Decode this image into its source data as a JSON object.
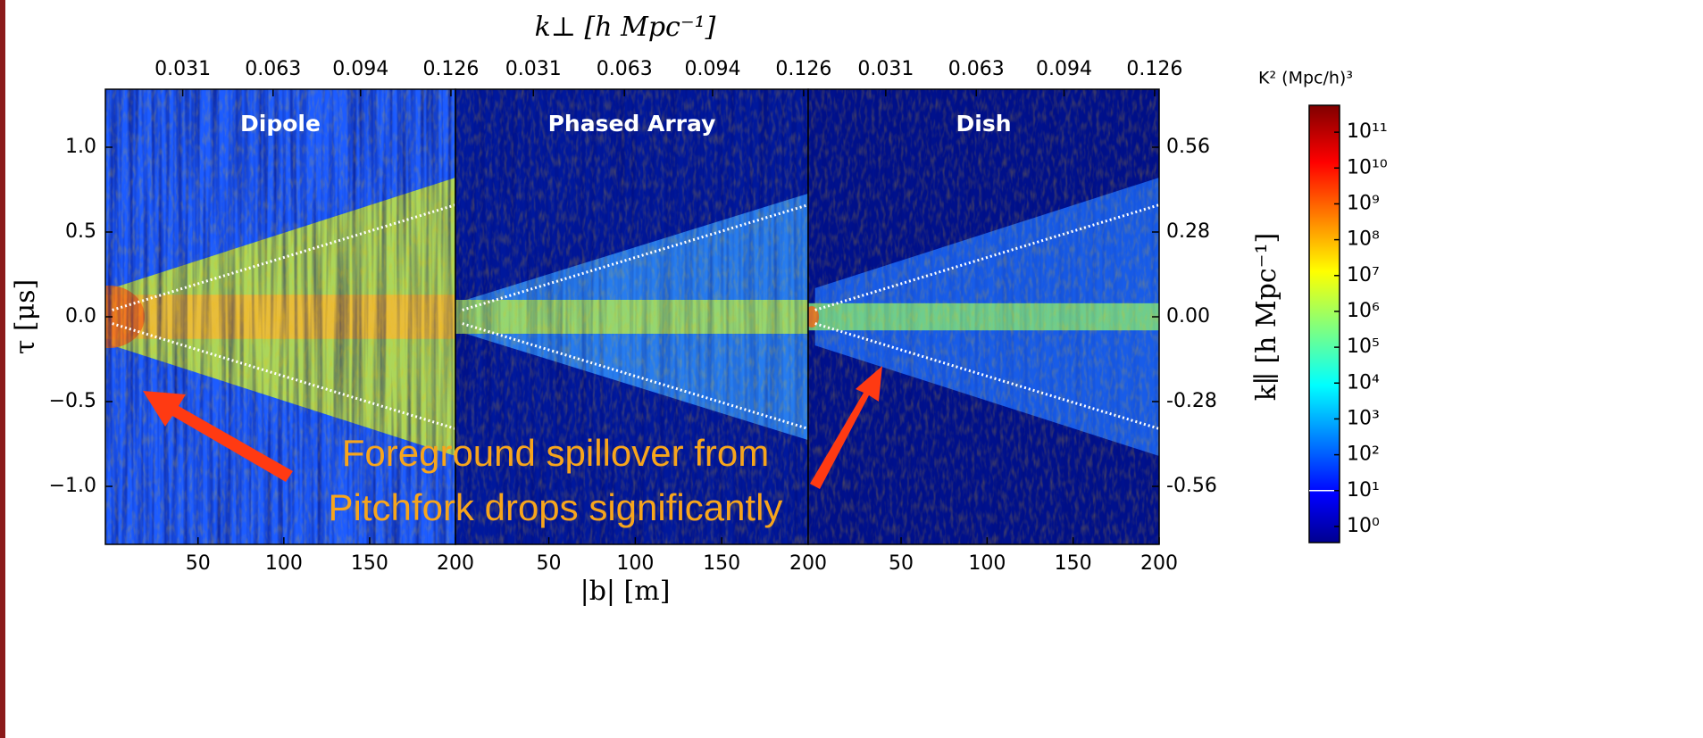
{
  "figure": {
    "x_label": "|b| [m]",
    "x2_label": "k⊥ [h Mpc⁻¹]",
    "y_label": "τ [μs]",
    "y2_label": "k∥ [h Mpc⁻¹]",
    "ylim": [
      -1.342,
      1.342
    ],
    "yticks": [
      {
        "value": -1.0,
        "label": "−1.0"
      },
      {
        "value": -0.5,
        "label": "−0.5"
      },
      {
        "value": 0,
        "label": "0.0"
      },
      {
        "value": 0.5,
        "label": "0.5"
      },
      {
        "value": 1.0,
        "label": "1.0"
      }
    ],
    "y2lim": [
      -0.7515,
      0.7515
    ],
    "y2ticks": [
      0.56,
      0.28,
      {
        "value": 0,
        "label": "0.00"
      },
      -0.28,
      -0.56
    ],
    "annotation": [
      "Foreground spillover from",
      "Pitchfork drops significantly"
    ],
    "colorbar": {
      "label": "K² (Mpc/h)³",
      "scale": "log",
      "clim": [
        0.355,
        562000000000
      ],
      "ticks": [
        {
          "value": 1,
          "label": "10⁰"
        },
        {
          "value": 10,
          "label": "10¹"
        },
        {
          "value": 100,
          "label": "10²"
        },
        {
          "value": 1000,
          "label": "10³"
        },
        {
          "value": 10000,
          "label": "10⁴"
        },
        {
          "value": 100000,
          "label": "10⁵"
        },
        {
          "value": 1000000,
          "label": "10⁶"
        },
        {
          "value": 10000000,
          "label": "10⁷"
        },
        {
          "value": 100000000,
          "label": "10⁸"
        },
        {
          "value": 1000000000,
          "label": "10⁹"
        },
        {
          "value": 10000000000,
          "label": "10¹⁰"
        },
        {
          "value": 100000000000,
          "label": "10¹¹"
        }
      ],
      "line": 10
    }
  },
  "chart_data": [
    {
      "type": "heatmap",
      "title": "Dipole",
      "xlim": [
        -4,
        200
      ],
      "xticks": [
        50,
        100,
        150,
        200
      ],
      "x2lim": [
        0.0036,
        0.1276
      ],
      "x2ticks": [
        0.031,
        0.063,
        0.094,
        0.126
      ],
      "series": [
        {
          "color": "#ffffff",
          "x": [
            0,
            200
          ],
          "values": [
            0.04,
            0.66
          ]
        },
        {
          "color": "#ffffff",
          "x": [
            0,
            200
          ],
          "values": [
            -0.04,
            -0.66
          ]
        }
      ]
    },
    {
      "type": "heatmap",
      "title": "Phased Array",
      "xlim": [
        -4,
        200
      ],
      "xticks": [
        50,
        100,
        150,
        200
      ],
      "x2lim": [
        0.0036,
        0.1276
      ],
      "x2ticks": [
        0.031,
        0.063,
        0.094,
        0.126
      ],
      "series": [
        {
          "color": "#ffffff",
          "x": [
            0,
            200
          ],
          "values": [
            0.04,
            0.66
          ]
        },
        {
          "color": "#ffffff",
          "x": [
            0,
            200
          ],
          "values": [
            -0.04,
            -0.66
          ]
        }
      ]
    },
    {
      "type": "heatmap",
      "title": "Dish",
      "xlim": [
        -4,
        200
      ],
      "xticks": [
        50,
        100,
        150,
        200
      ],
      "x2lim": [
        0.0036,
        0.1276
      ],
      "x2ticks": [
        0.031,
        0.063,
        0.094,
        0.126
      ],
      "series": [
        {
          "color": "#ffffff",
          "x": [
            0,
            200
          ],
          "values": [
            0.04,
            0.66
          ]
        },
        {
          "color": "#ffffff",
          "x": [
            0,
            200
          ],
          "values": [
            -0.04,
            -0.66
          ]
        }
      ]
    }
  ]
}
